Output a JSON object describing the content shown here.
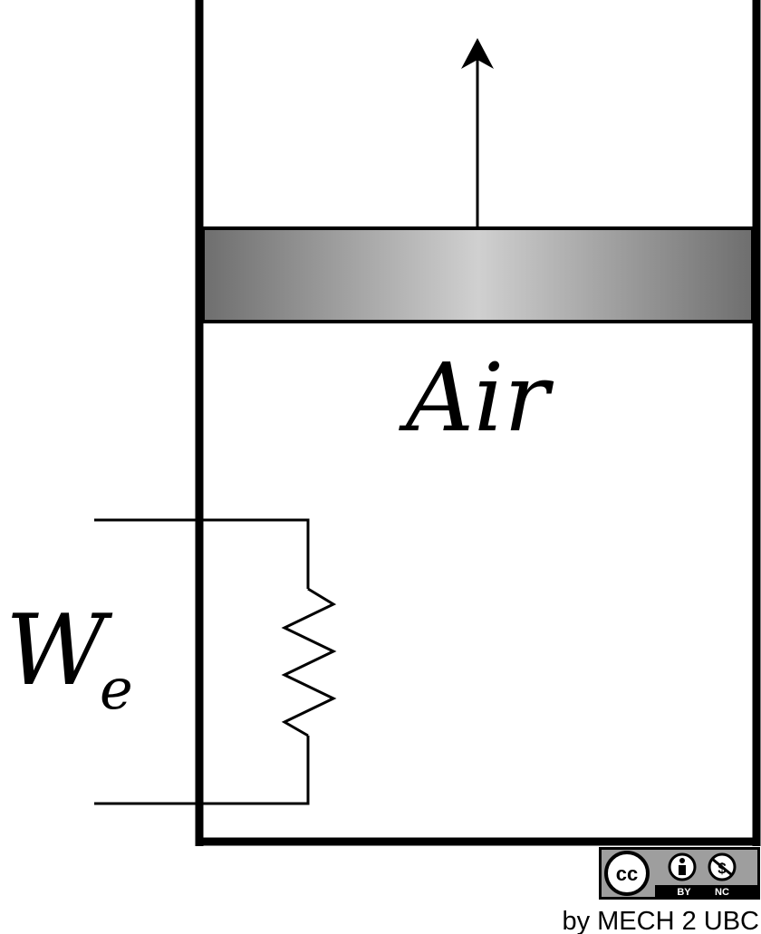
{
  "diagram": {
    "gas_label": "Air",
    "work_symbol": "W",
    "work_subscript": "e",
    "colors": {
      "line": "#000000",
      "piston_edge": "#6e6e6e",
      "piston_center": "#d0d0d0",
      "badge_fill": "#9e9e9e"
    }
  },
  "license": {
    "cc": "cc",
    "by": "BY",
    "nc": "NC",
    "credit": "by MECH 2 UBC",
    "icons": [
      "cc-icon",
      "attribution-icon",
      "noncommercial-icon"
    ]
  }
}
